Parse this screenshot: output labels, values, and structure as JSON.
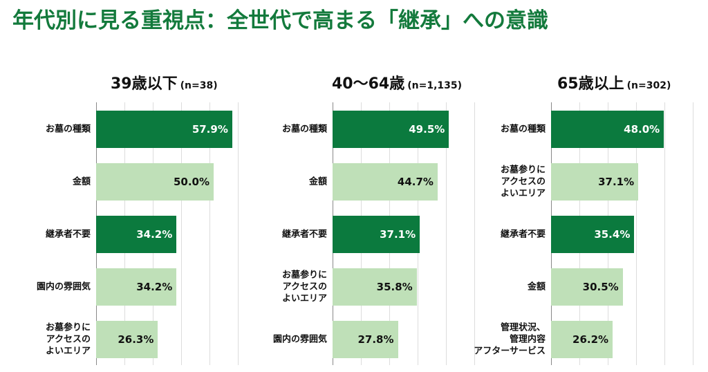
{
  "title": "年代別に見る重視点：全世代で高まる「継承」への意識",
  "colors": {
    "title": "#137a3c",
    "highlight": "#0b7a3e",
    "normal": "#bfe0b8"
  },
  "chart_data": [
    {
      "type": "bar",
      "orientation": "horizontal",
      "title": "39歳以下",
      "n": "(n=38)",
      "categories": [
        "お墓の種類",
        "金額",
        "継承者不要",
        "園内の雰囲気",
        "お墓参りにアクセスのよいエリア"
      ],
      "category_lines": [
        [
          "お墓の種類"
        ],
        [
          "金額"
        ],
        [
          "継承者不要"
        ],
        [
          "園内の雰囲気"
        ],
        [
          "お墓参りに",
          "アクセスの",
          "よいエリア"
        ]
      ],
      "values": [
        57.9,
        50.0,
        34.2,
        34.2,
        26.3
      ],
      "labels": [
        "57.9%",
        "50.0%",
        "34.2%",
        "34.2%",
        "26.3%"
      ],
      "highlighted": [
        true,
        false,
        true,
        false,
        false
      ],
      "grid": true
    },
    {
      "type": "bar",
      "orientation": "horizontal",
      "title": "40〜64歳",
      "n": "(n=1,135)",
      "categories": [
        "お墓の種類",
        "金額",
        "継承者不要",
        "お墓参りにアクセスのよいエリア",
        "園内の雰囲気"
      ],
      "category_lines": [
        [
          "お墓の種類"
        ],
        [
          "金額"
        ],
        [
          "継承者不要"
        ],
        [
          "お墓参りに",
          "アクセスの",
          "よいエリア"
        ],
        [
          "園内の雰囲気"
        ]
      ],
      "values": [
        49.5,
        44.7,
        37.1,
        35.8,
        27.8
      ],
      "labels": [
        "49.5%",
        "44.7%",
        "37.1%",
        "35.8%",
        "27.8%"
      ],
      "highlighted": [
        true,
        false,
        true,
        false,
        false
      ],
      "grid": true
    },
    {
      "type": "bar",
      "orientation": "horizontal",
      "title": "65歳以上",
      "n": "(n=302)",
      "categories": [
        "お墓の種類",
        "お墓参りにアクセスのよいエリア",
        "継承者不要",
        "金額",
        "管理状況、管理内容アフターサービス"
      ],
      "category_lines": [
        [
          "お墓の種類"
        ],
        [
          "お墓参りに",
          "アクセスの",
          "よいエリア"
        ],
        [
          "継承者不要"
        ],
        [
          "金額"
        ],
        [
          "管理状況、",
          "管理内容",
          "アフターサービス"
        ]
      ],
      "values": [
        48.0,
        37.1,
        35.4,
        30.5,
        26.2
      ],
      "labels": [
        "48.0%",
        "37.1%",
        "35.4%",
        "30.5%",
        "26.2%"
      ],
      "highlighted": [
        true,
        false,
        true,
        false,
        false
      ],
      "grid": true
    }
  ]
}
